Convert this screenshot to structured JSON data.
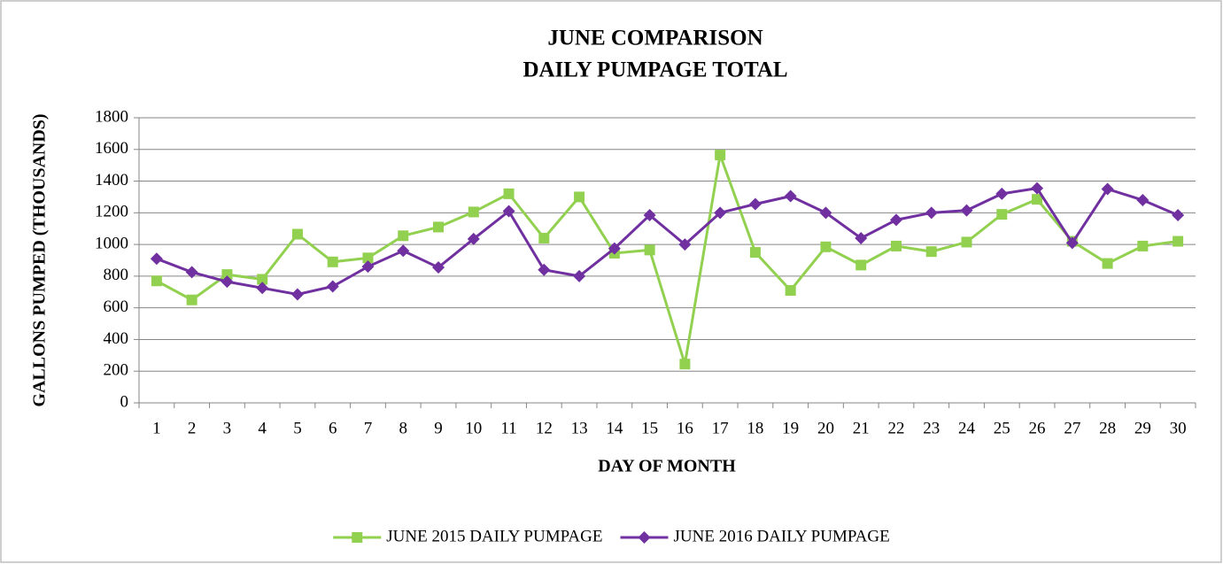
{
  "chart_data": {
    "type": "line",
    "title": [
      "JUNE COMPARISON",
      "DAILY PUMPAGE TOTAL"
    ],
    "x_label": "DAY OF MONTH",
    "y_label": "GALLONS PUMPED (THOUSANDS)",
    "categories": [
      1,
      2,
      3,
      4,
      5,
      6,
      7,
      8,
      9,
      10,
      11,
      12,
      13,
      14,
      15,
      16,
      17,
      18,
      19,
      20,
      21,
      22,
      23,
      24,
      25,
      26,
      27,
      28,
      29,
      30
    ],
    "series": [
      {
        "name": "JUNE 2015 DAILY PUMPAGE",
        "color": "#92d050",
        "marker": "square",
        "values": [
          770,
          650,
          810,
          780,
          1065,
          890,
          915,
          1055,
          1110,
          1205,
          1320,
          1040,
          1300,
          945,
          965,
          245,
          1565,
          950,
          710,
          985,
          870,
          990,
          955,
          1015,
          1190,
          1285,
          1020,
          880,
          990,
          1020
        ]
      },
      {
        "name": "JUNE 2016 DAILY PUMPAGE",
        "color": "#7030a0",
        "marker": "diamond",
        "values": [
          910,
          825,
          765,
          725,
          685,
          735,
          860,
          960,
          855,
          1035,
          1210,
          840,
          800,
          975,
          1185,
          1000,
          1200,
          1255,
          1305,
          1200,
          1040,
          1155,
          1200,
          1215,
          1320,
          1355,
          1010,
          1350,
          1280,
          1185
        ]
      }
    ],
    "ylim": [
      0,
      1800
    ],
    "yticks": [
      0,
      200,
      400,
      600,
      800,
      1000,
      1200,
      1400,
      1600,
      1800
    ],
    "grid": true,
    "legend": "bottom"
  }
}
